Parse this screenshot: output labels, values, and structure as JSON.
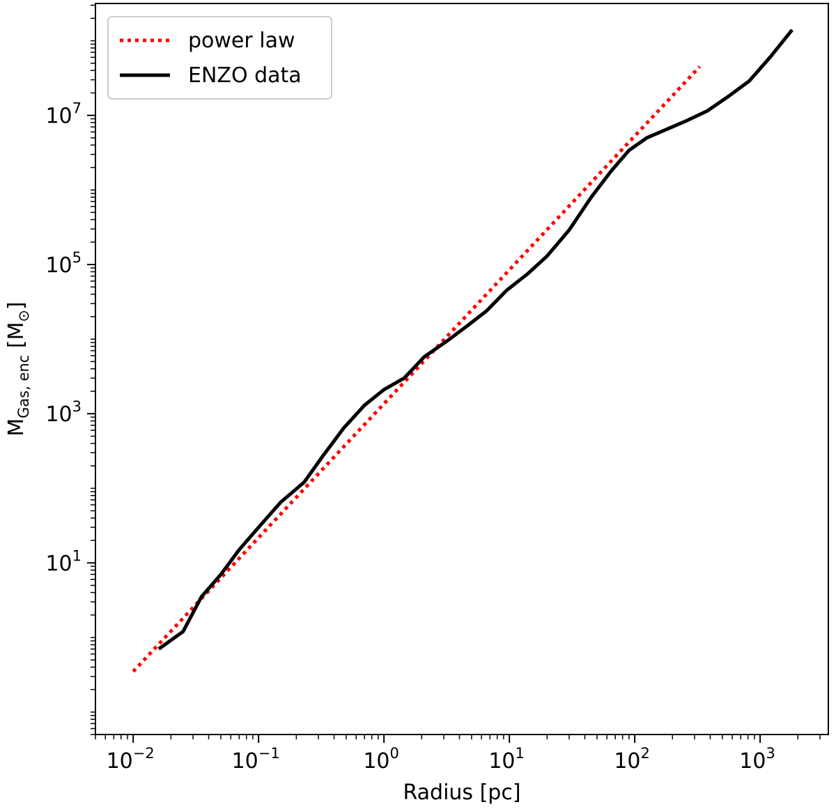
{
  "chart_data": {
    "type": "line",
    "xscale": "log",
    "yscale": "log",
    "xlim": [
      0.005,
      3500
    ],
    "ylim": [
      0.05,
      316227766
    ],
    "xlabel": "Radius [pc]",
    "ylabel": {
      "main": "M",
      "subscript": "Gas, enc",
      "unit_open": " [M",
      "unit_sub": "⊙",
      "unit_close": "]"
    },
    "x_ticks": [
      {
        "base": "10",
        "exp": "−2",
        "value": 0.01
      },
      {
        "base": "10",
        "exp": "−1",
        "value": 0.1
      },
      {
        "base": "10",
        "exp": "0",
        "value": 1
      },
      {
        "base": "10",
        "exp": "1",
        "value": 10
      },
      {
        "base": "10",
        "exp": "2",
        "value": 100
      },
      {
        "base": "10",
        "exp": "3",
        "value": 1000
      }
    ],
    "y_ticks": [
      {
        "base": "10",
        "exp": "1",
        "value": 10
      },
      {
        "base": "10",
        "exp": "3",
        "value": 1000
      },
      {
        "base": "10",
        "exp": "5",
        "value": 100000
      },
      {
        "base": "10",
        "exp": "7",
        "value": 10000000
      }
    ],
    "legend_position": "top-left",
    "series": [
      {
        "name": "power law",
        "color": "#ff0000",
        "style": "dotted",
        "x": [
          0.01,
          330
        ],
        "y": [
          0.35,
          45000000
        ]
      },
      {
        "name": "ENZO data",
        "color": "#000000",
        "style": "solid",
        "x": [
          0.016,
          0.025,
          0.035,
          0.05,
          0.07,
          0.1,
          0.15,
          0.23,
          0.33,
          0.48,
          0.7,
          1.0,
          1.45,
          2.1,
          3.2,
          4.6,
          6.6,
          9.5,
          14,
          20,
          30,
          45,
          65,
          90,
          125,
          180,
          260,
          380,
          560,
          820,
          1200,
          1800
        ],
        "y": [
          0.7,
          1.2,
          3.5,
          7,
          15,
          30,
          65,
          120,
          280,
          650,
          1300,
          2100,
          3000,
          5800,
          9500,
          15000,
          24000,
          45000,
          75000,
          130000,
          290000,
          800000,
          1800000,
          3400000,
          5000000,
          6500000,
          8500000,
          11500000,
          18000000,
          29000000,
          60000000,
          140000000
        ]
      }
    ]
  }
}
